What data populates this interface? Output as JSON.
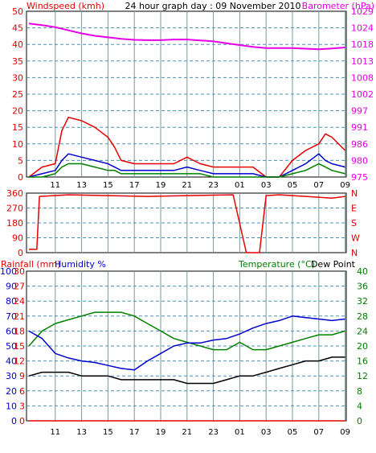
{
  "colors": {
    "red": "#e60000",
    "blue": "#0000cc",
    "green": "#008000",
    "magenta": "#e600e6",
    "black": "#000000",
    "grid": "#7a9a9a",
    "dash": "#4a90b8"
  },
  "chart_data": [
    {
      "type": "line",
      "title": "24 hour graph day : 09 November 2010",
      "left_axis_label": "Windspeed (kmh)",
      "right_axis_label": "Barometer (hPa)",
      "ylim": [
        0,
        50
      ],
      "y_ticks": [
        0,
        5,
        10,
        15,
        20,
        25,
        30,
        35,
        40,
        45,
        50
      ],
      "right_ylim": [
        975,
        1029
      ],
      "right_ticks": [
        975,
        980,
        986,
        991,
        997,
        1002,
        1008,
        1013,
        1018,
        1024,
        1029
      ],
      "x_ticks": [
        "11",
        "13",
        "15",
        "17",
        "19",
        "21",
        "23",
        "01",
        "03",
        "05",
        "07",
        "09"
      ],
      "series": [
        {
          "name": "Barometer",
          "axis": "right",
          "x": [
            0,
            1,
            2,
            3,
            4,
            5,
            6,
            7,
            8,
            9,
            10,
            11,
            12,
            13,
            14,
            15,
            16,
            17,
            18,
            19,
            20,
            21,
            22,
            23,
            24
          ],
          "values": [
            1025.0,
            1024.5,
            1023.8,
            1022.8,
            1021.8,
            1021.0,
            1020.5,
            1020.0,
            1019.7,
            1019.6,
            1019.6,
            1019.8,
            1019.8,
            1019.5,
            1019.2,
            1018.6,
            1018.0,
            1017.4,
            1017.0,
            1017.0,
            1017.0,
            1016.8,
            1016.6,
            1016.9,
            1017.2
          ]
        },
        {
          "name": "Wind gust",
          "axis": "left",
          "x": [
            0,
            1,
            2,
            2.5,
            3,
            4,
            5,
            6,
            6.5,
            7,
            8,
            9,
            10,
            11,
            12,
            13,
            14,
            15,
            16,
            17,
            18,
            19,
            20,
            21,
            22,
            22.5,
            23,
            24
          ],
          "values": [
            0,
            3,
            4,
            14,
            18,
            17,
            15,
            12,
            9,
            5,
            4,
            4,
            4,
            4,
            6,
            4,
            3,
            3,
            3,
            3,
            0,
            0,
            5,
            8,
            10,
            13,
            12,
            8
          ]
        },
        {
          "name": "Wind speed",
          "axis": "left",
          "x": [
            0,
            1,
            2,
            2.5,
            3,
            4,
            5,
            6,
            6.5,
            7,
            8,
            9,
            10,
            11,
            12,
            13,
            14,
            15,
            16,
            17,
            18,
            19,
            20,
            21,
            22,
            22.5,
            23,
            24
          ],
          "values": [
            0,
            1,
            2,
            5,
            7,
            6,
            5,
            4,
            3,
            2,
            2,
            2,
            2,
            2,
            3,
            2,
            1,
            1,
            1,
            1,
            0,
            0,
            2,
            4,
            7,
            5,
            4,
            3
          ]
        },
        {
          "name": "Wind average",
          "axis": "left",
          "x": [
            0,
            1,
            2,
            2.5,
            3,
            4,
            5,
            6,
            6.5,
            7,
            8,
            9,
            10,
            11,
            12,
            13,
            14,
            15,
            16,
            17,
            18,
            19,
            20,
            21,
            22,
            22.5,
            23,
            24
          ],
          "values": [
            0,
            0,
            1,
            3,
            4,
            4,
            3,
            2,
            2,
            1,
            1,
            1,
            1,
            1,
            1,
            1,
            0,
            0,
            0,
            0,
            0,
            0,
            1,
            2,
            4,
            3,
            2,
            1
          ]
        }
      ]
    },
    {
      "type": "line",
      "ylim": [
        0,
        360
      ],
      "y_ticks": [
        0,
        90,
        180,
        270,
        360
      ],
      "right_ticks": [
        "N",
        "W",
        "S",
        "E",
        "N"
      ],
      "x_ticks": [
        "11",
        "13",
        "15",
        "17",
        "19",
        "21",
        "23",
        "01",
        "03",
        "05",
        "07",
        "09"
      ],
      "series": [
        {
          "name": "Wind direction",
          "x": [
            0,
            0.6,
            0.8,
            3,
            6,
            9,
            12,
            15.5,
            16.5,
            17.5,
            18,
            19,
            21,
            23,
            24
          ],
          "values": [
            20,
            20,
            340,
            350,
            345,
            340,
            345,
            350,
            0,
            0,
            345,
            350,
            340,
            330,
            340
          ]
        }
      ]
    },
    {
      "type": "line",
      "left_axis_label": "Rainfall (mm)",
      "left_axis_label_2": "Humidity %",
      "right_axis_label": "Temperature (°C)",
      "right_axis_label_2": "Dew Point",
      "rain_ticks": [
        0,
        3,
        6,
        9,
        12,
        15,
        18,
        21,
        24,
        27,
        30
      ],
      "humidity_ticks": [
        0,
        10,
        20,
        30,
        40,
        50,
        60,
        70,
        80,
        90,
        100
      ],
      "ylim": [
        0,
        100
      ],
      "right_ylim": [
        0,
        40
      ],
      "right_ticks": [
        0,
        4,
        8,
        12,
        16,
        20,
        24,
        28,
        32,
        36,
        40
      ],
      "x_ticks": [
        "11",
        "13",
        "15",
        "17",
        "19",
        "21",
        "23",
        "01",
        "03",
        "05",
        "07",
        "09"
      ],
      "series": [
        {
          "name": "Temperature",
          "axis": "right",
          "x": [
            0,
            1,
            2,
            3,
            4,
            5,
            6,
            7,
            8,
            9,
            10,
            11,
            12,
            13,
            14,
            15,
            16,
            17,
            18,
            19,
            20,
            21,
            22,
            23,
            24
          ],
          "values": [
            20,
            24,
            26,
            27,
            28,
            29,
            29,
            29,
            28,
            26,
            24,
            22,
            21,
            20,
            19,
            19,
            21,
            19,
            19,
            20,
            21,
            22,
            23,
            23,
            24
          ]
        },
        {
          "name": "Humidity",
          "axis": "left",
          "x": [
            0,
            1,
            2,
            3,
            4,
            5,
            6,
            7,
            8,
            9,
            10,
            11,
            12,
            13,
            14,
            15,
            16,
            17,
            18,
            19,
            20,
            21,
            22,
            23,
            24
          ],
          "values": [
            60,
            55,
            45,
            42,
            40,
            39,
            37,
            35,
            34,
            40,
            45,
            50,
            52,
            52,
            54,
            55,
            58,
            62,
            65,
            67,
            70,
            69,
            68,
            67,
            68
          ]
        },
        {
          "name": "Dew Point",
          "axis": "right",
          "x": [
            0,
            1,
            2,
            3,
            4,
            5,
            6,
            7,
            8,
            9,
            10,
            11,
            12,
            13,
            14,
            15,
            16,
            17,
            18,
            19,
            20,
            21,
            22,
            23,
            24
          ],
          "values": [
            12,
            13,
            13,
            13,
            12,
            12,
            12,
            11,
            11,
            11,
            11,
            11,
            10,
            10,
            10,
            11,
            12,
            12,
            13,
            14,
            15,
            16,
            16,
            17,
            17
          ]
        },
        {
          "name": "Rainfall",
          "axis": "left",
          "x": [
            0,
            24
          ],
          "values": [
            0,
            0
          ]
        }
      ]
    }
  ]
}
